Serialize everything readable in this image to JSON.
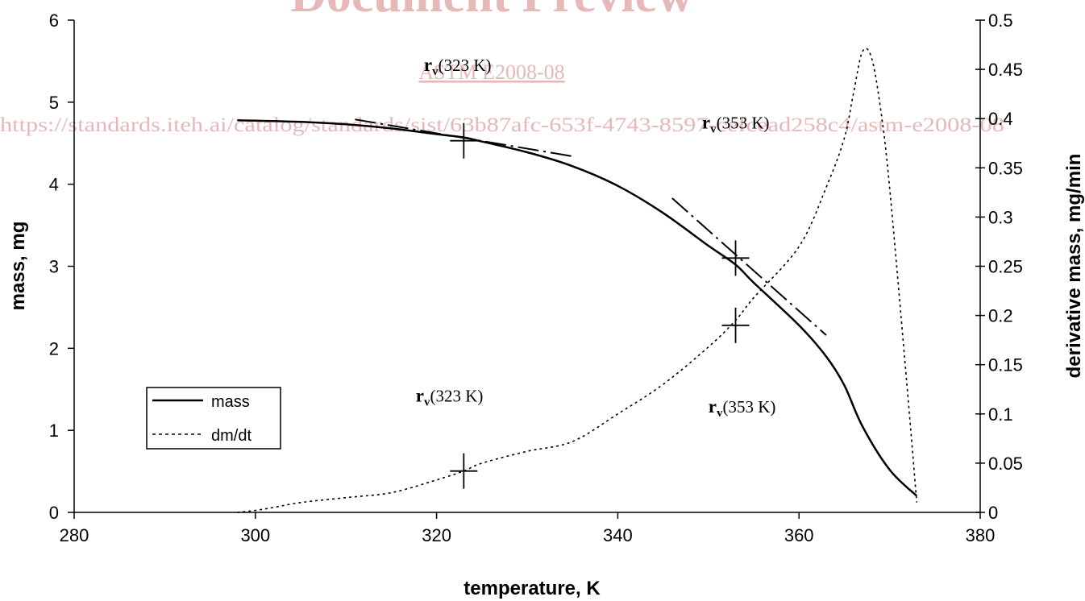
{
  "watermark": {
    "title": "Document Preview",
    "code": "ASTM E2008-08",
    "url": "https://standards.iteh.ai/catalog/standards/sist/63b87afc-653f-4743-8597-cefcead258c4/astm-e2008-08"
  },
  "chart_data": {
    "type": "line",
    "xlabel": "temperature, K",
    "ylabel": "mass, mg",
    "y2label": "derivative mass, mg/min",
    "xlim": [
      280,
      380
    ],
    "ylim": [
      0,
      6
    ],
    "y2lim": [
      0,
      0.5
    ],
    "xticks": [
      "280",
      "300",
      "320",
      "340",
      "360",
      "380"
    ],
    "yticks": [
      "0",
      "1",
      "2",
      "3",
      "4",
      "5",
      "6"
    ],
    "y2ticks": [
      "0",
      "0.05",
      "0.1",
      "0.15",
      "0.2",
      "0.25",
      "0.3",
      "0.35",
      "0.4",
      "0.45",
      "0.5"
    ],
    "grid": false,
    "legend_position": "bottom-left",
    "series": [
      {
        "name": "mass",
        "axis": "left",
        "style": "solid",
        "x": [
          298,
          305,
          310,
          315,
          320,
          323,
          325,
          330,
          335,
          340,
          345,
          350,
          353,
          355,
          360,
          363,
          365,
          367,
          370,
          373
        ],
        "y": [
          4.78,
          4.76,
          4.73,
          4.68,
          4.61,
          4.57,
          4.52,
          4.39,
          4.22,
          3.98,
          3.65,
          3.25,
          3.02,
          2.8,
          2.28,
          1.9,
          1.55,
          1.05,
          0.52,
          0.2
        ]
      },
      {
        "name": "dm/dt",
        "axis": "right",
        "style": "dotted",
        "x": [
          298,
          300,
          302,
          305,
          310,
          315,
          320,
          323,
          325,
          330,
          335,
          340,
          345,
          350,
          353,
          355,
          360,
          363,
          365,
          366,
          367,
          368,
          369,
          370,
          372,
          373
        ],
        "y": [
          0,
          0.002,
          0.005,
          0.01,
          0.015,
          0.02,
          0.033,
          0.042,
          0.05,
          0.062,
          0.072,
          0.1,
          0.13,
          0.168,
          0.195,
          0.218,
          0.27,
          0.33,
          0.38,
          0.425,
          0.468,
          0.462,
          0.41,
          0.33,
          0.12,
          0.01
        ]
      }
    ],
    "tangent_lines": [
      {
        "x": [
          311,
          335
        ],
        "y": [
          4.79,
          4.34
        ]
      },
      {
        "x": [
          346,
          363
        ],
        "y": [
          3.83,
          2.16
        ]
      }
    ],
    "markers": [
      {
        "x": 323,
        "y": 4.53,
        "axis": "left"
      },
      {
        "x": 353,
        "y": 3.1,
        "axis": "left"
      },
      {
        "x": 353,
        "y": 0.19,
        "axis": "right"
      },
      {
        "x": 323,
        "y": 0.042,
        "axis": "right"
      }
    ],
    "annotations": [
      {
        "r": "r",
        "sub": "v",
        "text": "(323 K)",
        "x": 318.6,
        "y": 5.38
      },
      {
        "r": "r",
        "sub": "v",
        "text": "(353 K)",
        "x": 349.3,
        "y": 4.68
      },
      {
        "r": "r",
        "sub": "v",
        "text": "(323 K)",
        "x": 317.7,
        "y": 1.35
      },
      {
        "r": "r",
        "sub": "v",
        "text": "(353 K)",
        "x": 350.0,
        "y": 1.22
      }
    ]
  }
}
